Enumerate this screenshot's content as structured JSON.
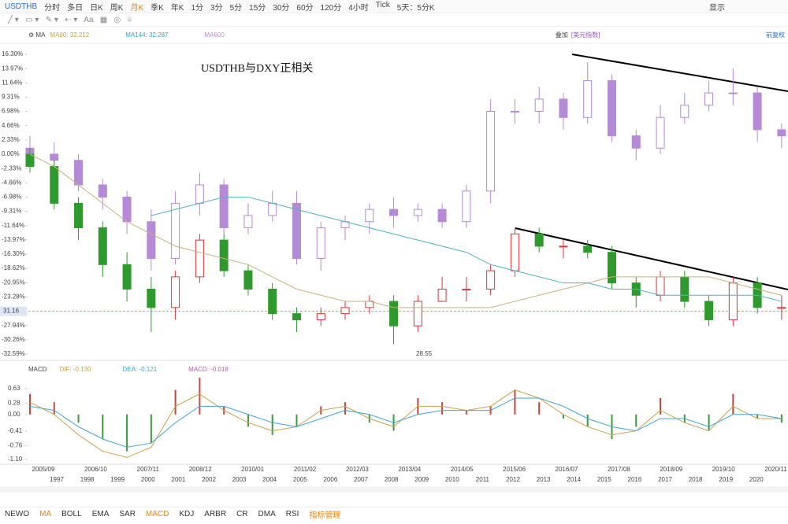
{
  "toolbar": {
    "symbol": "USDTHB",
    "periods": [
      "分时",
      "多日",
      "日K",
      "周K",
      "月K",
      "季K",
      "年K",
      "1分",
      "3分",
      "5分",
      "15分",
      "30分",
      "60分",
      "120分",
      "4小时",
      "Tick",
      "5天：5分K"
    ],
    "active": "月K",
    "display": "显示"
  },
  "legend": {
    "ma": "MA",
    "ma60": "MA60: 32.212",
    "ma144": "MA144: 32.287",
    "ma600": "MA600",
    "overlay": "叠加",
    "overlay_symbol": "[美元指数]",
    "adjust": "前复权"
  },
  "macd_legend": {
    "name": "MACD",
    "dif": "DIF: -0.130",
    "dea": "DEA: -0.121",
    "macd": "MACD: -0.018"
  },
  "indicator_tabs": [
    "NEWO",
    "MA",
    "BOLL",
    "EMA",
    "SAR",
    "MACD",
    "KDJ",
    "ARBR",
    "CR",
    "DMA",
    "RSI",
    "指标管理"
  ],
  "chart_data": [
    {
      "type": "candlestick",
      "annotation": "USDTHB与DXY正相关",
      "low_label": "28.55",
      "ylim": [
        -32.59,
        16.3
      ],
      "yticks": [
        {
          "value": 16.3,
          "label": "16.30%"
        },
        {
          "value": 13.97,
          "label": "13.97%"
        },
        {
          "value": 11.64,
          "label": "11.64%"
        },
        {
          "value": 9.31,
          "label": "9.31%"
        },
        {
          "value": 6.98,
          "label": "6.98%"
        },
        {
          "value": 4.66,
          "label": "4.66%"
        },
        {
          "value": 2.33,
          "label": "2.33%"
        },
        {
          "value": 0,
          "label": "0.00%"
        },
        {
          "value": -2.33,
          "label": "-2.33%"
        },
        {
          "value": -4.66,
          "label": "-4.66%"
        },
        {
          "value": -6.98,
          "label": "-6.98%"
        },
        {
          "value": -9.31,
          "label": "-9.31%"
        },
        {
          "value": -11.64,
          "label": "-11.64%"
        },
        {
          "value": -13.97,
          "label": "-13.97%"
        },
        {
          "value": -16.3,
          "label": "-16.30%"
        },
        {
          "value": -18.62,
          "label": "-18.62%"
        },
        {
          "value": -20.95,
          "label": "-20.95%"
        },
        {
          "value": -23.28,
          "label": "-23.28%"
        },
        {
          "value": -27.94,
          "label": "-27.94%"
        },
        {
          "value": -30.26,
          "label": "-30.26%"
        },
        {
          "value": -32.59,
          "label": "-32.59%"
        }
      ],
      "price_marker": {
        "value": -25.61,
        "label": "31.16"
      },
      "x_labels": [
        "2005/09",
        "2006/10",
        "2007/11",
        "2008/12",
        "2010/01",
        "2011/02",
        "2012/03",
        "2013/04",
        "2014/05",
        "2015/06",
        "2016/07",
        "2017/08",
        "2018/09",
        "2019/10",
        "2020/11"
      ],
      "overlay_x_labels": [
        "1997",
        "1998",
        "1999",
        "2000",
        "2001",
        "2002",
        "2003",
        "2004",
        "2005",
        "2006",
        "2007",
        "2008",
        "2009",
        "2010",
        "2011",
        "2012",
        "2013",
        "2014",
        "2015",
        "2016",
        "2017",
        "2018",
        "2019",
        "2020"
      ],
      "overlay_candles": {
        "color": "#b58ad6",
        "open": [
          1,
          0,
          -1,
          -5,
          -7,
          -11,
          -17,
          -8,
          -5,
          -12,
          -10,
          -8,
          -17,
          -12,
          -11,
          -9,
          -10,
          -9,
          -11,
          -6,
          7,
          7,
          9,
          6,
          12,
          3,
          1,
          6,
          8,
          10,
          10,
          4
        ],
        "close": [
          0,
          -1,
          -5,
          -7,
          -11,
          -17,
          -8,
          -5,
          -12,
          -10,
          -8,
          -17,
          -12,
          -11,
          -9,
          -10,
          -9,
          -11,
          -6,
          7,
          7,
          9,
          6,
          12,
          3,
          1,
          6,
          8,
          10,
          10,
          4,
          3
        ],
        "high": [
          3,
          2,
          0,
          -4,
          -6,
          -9,
          -6,
          -3,
          -4,
          -8,
          -6,
          -6,
          -11,
          -10,
          -8,
          -7,
          -8,
          -8,
          -5,
          9,
          9,
          11,
          10,
          15,
          13,
          4,
          8,
          10,
          12,
          14,
          11,
          5
        ],
        "low": [
          -1,
          -3,
          -6,
          -9,
          -13,
          -19,
          -18,
          -10,
          -13,
          -13,
          -11,
          -18,
          -19,
          -14,
          -13,
          -12,
          -11,
          -12,
          -12,
          -8,
          5,
          5,
          4,
          5,
          2,
          -1,
          0,
          5,
          7,
          8,
          2,
          1
        ]
      },
      "candles": {
        "up_color": "#d9363e",
        "down_color": "#2e9a2e",
        "open": [
          0,
          -2,
          -8,
          -12,
          -18,
          -22,
          -25,
          -20,
          -14,
          -19,
          -22,
          -26,
          -27,
          -26,
          -25,
          -24,
          -28,
          -24,
          -22,
          -22,
          -19,
          -13,
          -15,
          -15,
          -16,
          -21,
          -23,
          -20,
          -24,
          -27,
          -21,
          -25
        ],
        "close": [
          -2,
          -8,
          -12,
          -18,
          -22,
          -25,
          -20,
          -14,
          -19,
          -22,
          -26,
          -27,
          -26,
          -25,
          -24,
          -28,
          -24,
          -22,
          -22,
          -19,
          -13,
          -15,
          -15,
          -16,
          -21,
          -23,
          -20,
          -24,
          -27,
          -21,
          -25,
          -25
        ],
        "high": [
          1,
          -1,
          -7,
          -11,
          -16,
          -20,
          -19,
          -13,
          -13,
          -18,
          -21,
          -25,
          -25,
          -24,
          -23,
          -23,
          -23,
          -20,
          -20,
          -18,
          -12,
          -12,
          -14,
          -14,
          -15,
          -20,
          -19,
          -19,
          -23,
          -20,
          -20,
          -23
        ],
        "low": [
          -3,
          -9,
          -14,
          -20,
          -24,
          -29,
          -27,
          -21,
          -20,
          -23,
          -27,
          -29,
          -28,
          -27,
          -26,
          -31,
          -29,
          -24,
          -24,
          -23,
          -20,
          -16,
          -17,
          -17,
          -22,
          -25,
          -24,
          -25,
          -28,
          -28,
          -26,
          -27
        ]
      },
      "ma60": {
        "color": "#c8b27a",
        "values": [
          0,
          -2,
          -5,
          -8,
          -11,
          -13,
          -15,
          -16,
          -17,
          -18,
          -20,
          -22,
          -23,
          -24,
          -24,
          -25,
          -25,
          -25,
          -25,
          -25,
          -24,
          -23,
          -22,
          -21,
          -20,
          -20,
          -20,
          -20,
          -20,
          -21,
          -22,
          -23
        ]
      },
      "ma144": {
        "color": "#4fb3c8",
        "values": [
          null,
          null,
          null,
          null,
          null,
          -10,
          -9,
          -8,
          -7,
          -7,
          -8,
          -9,
          -10,
          -11,
          -12,
          -13,
          -14,
          -15,
          -16,
          -18,
          -19,
          -20,
          -21,
          -21,
          -22,
          -22,
          -23,
          -23,
          -23,
          -23,
          -23,
          -24
        ]
      }
    },
    {
      "type": "macd",
      "ylim": [
        -1.1,
        0.63
      ],
      "yticks": [
        0.63,
        0.28,
        {
          "value": 0,
          "label": "0.00"
        },
        -0.41,
        -0.76,
        {
          "value": -1.1,
          "label": "-1.10"
        }
      ],
      "histogram": [
        0.5,
        0.3,
        -0.2,
        -0.6,
        -0.9,
        -0.7,
        0.6,
        0.9,
        0.2,
        -0.3,
        -0.5,
        -0.3,
        0.2,
        0.3,
        -0.2,
        -0.4,
        0.4,
        0.3,
        0.1,
        0.2,
        0.6,
        0.3,
        -0.1,
        -0.3,
        -0.6,
        -0.3,
        0.4,
        -0.2,
        -0.4,
        0.5,
        -0.1,
        -0.2
      ],
      "up_color": "#c9463d",
      "down_color": "#3c9a3c",
      "dif": {
        "color": "#c8a24a",
        "values": [
          0.3,
          0.0,
          -0.5,
          -0.9,
          -1.05,
          -0.8,
          0.2,
          0.5,
          0.1,
          -0.2,
          -0.4,
          -0.3,
          0.1,
          0.2,
          -0.1,
          -0.3,
          0.2,
          0.2,
          0.1,
          0.2,
          0.6,
          0.4,
          0.0,
          -0.3,
          -0.5,
          -0.4,
          0.1,
          -0.2,
          -0.4,
          0.2,
          -0.1,
          -0.1
        ]
      },
      "dea": {
        "color": "#3ea7d6",
        "values": [
          0.2,
          0.1,
          -0.3,
          -0.6,
          -0.8,
          -0.7,
          -0.2,
          0.2,
          0.2,
          0.0,
          -0.2,
          -0.3,
          -0.1,
          0.1,
          0.0,
          -0.2,
          0.0,
          0.1,
          0.1,
          0.1,
          0.4,
          0.4,
          0.2,
          -0.1,
          -0.3,
          -0.4,
          -0.1,
          -0.1,
          -0.3,
          0.0,
          0.0,
          -0.1
        ]
      }
    }
  ]
}
